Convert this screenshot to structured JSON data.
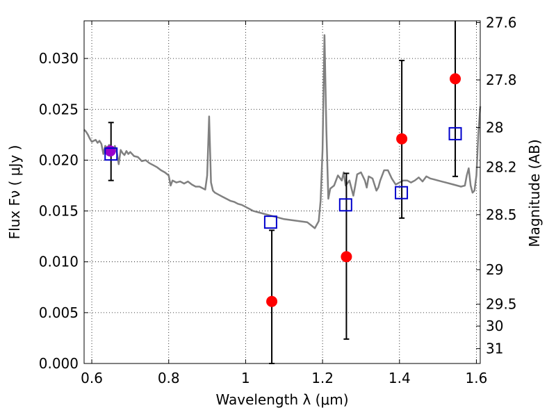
{
  "chart_data": {
    "type": "scatter",
    "xlabel": "Wavelength  λ (μm)",
    "ylabel": "Flux  Fν  ( μJy )",
    "ylabel_right": "Magnitude (AB)",
    "xlim": [
      0.58,
      1.61
    ],
    "ylim": [
      0.0,
      0.0337
    ],
    "grid": true,
    "x_ticks": [
      {
        "value": 0.6,
        "label": "0.6"
      },
      {
        "value": 0.8,
        "label": "0.8"
      },
      {
        "value": 1.0,
        "label": "1"
      },
      {
        "value": 1.2,
        "label": "1.2"
      },
      {
        "value": 1.4,
        "label": "1.4"
      },
      {
        "value": 1.6,
        "label": "1.6"
      }
    ],
    "y_ticks": [
      {
        "value": 0.0,
        "label": "0.000"
      },
      {
        "value": 0.005,
        "label": "0.005"
      },
      {
        "value": 0.01,
        "label": "0.010"
      },
      {
        "value": 0.015,
        "label": "0.015"
      },
      {
        "value": 0.02,
        "label": "0.020"
      },
      {
        "value": 0.025,
        "label": "0.025"
      },
      {
        "value": 0.03,
        "label": "0.030"
      }
    ],
    "right_ticks": [
      {
        "label": "27.6",
        "flux": 0.03353
      },
      {
        "label": "27.8",
        "flux": 0.02789
      },
      {
        "label": "28",
        "flux": 0.0232
      },
      {
        "label": "28.2",
        "flux": 0.0193
      },
      {
        "label": "28.5",
        "flux": 0.01464
      },
      {
        "label": "29",
        "flux": 0.00923
      },
      {
        "label": "29.5",
        "flux": 0.00583
      },
      {
        "label": "30",
        "flux": 0.00368
      },
      {
        "label": "31",
        "flux": 0.00146
      }
    ],
    "series": [
      {
        "kind": "line",
        "color": "#808080",
        "points": [
          [
            0.58,
            0.023
          ],
          [
            0.585,
            0.0228
          ],
          [
            0.59,
            0.0225
          ],
          [
            0.595,
            0.0221
          ],
          [
            0.6,
            0.0218
          ],
          [
            0.605,
            0.0219
          ],
          [
            0.61,
            0.022
          ],
          [
            0.615,
            0.0217
          ],
          [
            0.62,
            0.0219
          ],
          [
            0.625,
            0.0216
          ],
          [
            0.63,
            0.0206
          ],
          [
            0.635,
            0.0214
          ],
          [
            0.64,
            0.0212
          ],
          [
            0.645,
            0.0215
          ],
          [
            0.65,
            0.0213
          ],
          [
            0.655,
            0.021
          ],
          [
            0.66,
            0.0214
          ],
          [
            0.665,
            0.0208
          ],
          [
            0.67,
            0.0196
          ],
          [
            0.675,
            0.021
          ],
          [
            0.68,
            0.0207
          ],
          [
            0.685,
            0.0205
          ],
          [
            0.69,
            0.0209
          ],
          [
            0.695,
            0.0206
          ],
          [
            0.7,
            0.0208
          ],
          [
            0.71,
            0.0204
          ],
          [
            0.72,
            0.0203
          ],
          [
            0.73,
            0.0199
          ],
          [
            0.74,
            0.02
          ],
          [
            0.75,
            0.0197
          ],
          [
            0.76,
            0.0195
          ],
          [
            0.77,
            0.0193
          ],
          [
            0.78,
            0.019
          ],
          [
            0.79,
            0.0188
          ],
          [
            0.8,
            0.0185
          ],
          [
            0.805,
            0.0175
          ],
          [
            0.81,
            0.018
          ],
          [
            0.82,
            0.0178
          ],
          [
            0.83,
            0.0179
          ],
          [
            0.84,
            0.0177
          ],
          [
            0.85,
            0.0179
          ],
          [
            0.86,
            0.0176
          ],
          [
            0.87,
            0.0174
          ],
          [
            0.88,
            0.0174
          ],
          [
            0.89,
            0.0172
          ],
          [
            0.895,
            0.0171
          ],
          [
            0.9,
            0.0185
          ],
          [
            0.905,
            0.0243
          ],
          [
            0.91,
            0.0178
          ],
          [
            0.915,
            0.017
          ],
          [
            0.92,
            0.0168
          ],
          [
            0.93,
            0.0166
          ],
          [
            0.94,
            0.0164
          ],
          [
            0.95,
            0.0162
          ],
          [
            0.96,
            0.016
          ],
          [
            0.97,
            0.0159
          ],
          [
            0.98,
            0.0157
          ],
          [
            0.99,
            0.0156
          ],
          [
            1.0,
            0.0154
          ],
          [
            1.01,
            0.0152
          ],
          [
            1.02,
            0.015
          ],
          [
            1.03,
            0.0149
          ],
          [
            1.04,
            0.0148
          ],
          [
            1.05,
            0.0147
          ],
          [
            1.06,
            0.0146
          ],
          [
            1.07,
            0.0145
          ],
          [
            1.08,
            0.0144
          ],
          [
            1.09,
            0.0143
          ],
          [
            1.1,
            0.0142
          ],
          [
            1.12,
            0.0141
          ],
          [
            1.14,
            0.014
          ],
          [
            1.16,
            0.0139
          ],
          [
            1.17,
            0.0136
          ],
          [
            1.18,
            0.0133
          ],
          [
            1.19,
            0.014
          ],
          [
            1.195,
            0.016
          ],
          [
            1.2,
            0.021
          ],
          [
            1.205,
            0.0323
          ],
          [
            1.21,
            0.023
          ],
          [
            1.215,
            0.0162
          ],
          [
            1.22,
            0.0172
          ],
          [
            1.23,
            0.0175
          ],
          [
            1.24,
            0.0185
          ],
          [
            1.25,
            0.018
          ],
          [
            1.255,
            0.0188
          ],
          [
            1.26,
            0.0175
          ],
          [
            1.27,
            0.018
          ],
          [
            1.28,
            0.0165
          ],
          [
            1.285,
            0.0175
          ],
          [
            1.29,
            0.0186
          ],
          [
            1.3,
            0.0188
          ],
          [
            1.31,
            0.018
          ],
          [
            1.315,
            0.0173
          ],
          [
            1.32,
            0.0184
          ],
          [
            1.33,
            0.0182
          ],
          [
            1.34,
            0.017
          ],
          [
            1.345,
            0.0173
          ],
          [
            1.35,
            0.018
          ],
          [
            1.36,
            0.019
          ],
          [
            1.37,
            0.019
          ],
          [
            1.38,
            0.0182
          ],
          [
            1.39,
            0.0176
          ],
          [
            1.4,
            0.0178
          ],
          [
            1.41,
            0.018
          ],
          [
            1.42,
            0.018
          ],
          [
            1.43,
            0.0178
          ],
          [
            1.44,
            0.018
          ],
          [
            1.45,
            0.0183
          ],
          [
            1.46,
            0.0179
          ],
          [
            1.47,
            0.0184
          ],
          [
            1.48,
            0.0182
          ],
          [
            1.49,
            0.0181
          ],
          [
            1.5,
            0.018
          ],
          [
            1.52,
            0.0178
          ],
          [
            1.54,
            0.0176
          ],
          [
            1.56,
            0.0174
          ],
          [
            1.57,
            0.0175
          ],
          [
            1.575,
            0.0185
          ],
          [
            1.58,
            0.0192
          ],
          [
            1.585,
            0.0175
          ],
          [
            1.59,
            0.0168
          ],
          [
            1.595,
            0.017
          ],
          [
            1.6,
            0.0185
          ],
          [
            1.605,
            0.0225
          ],
          [
            1.61,
            0.0253
          ]
        ]
      },
      {
        "kind": "errorbar",
        "color": "#000000",
        "points": [
          {
            "x": 0.65,
            "low": 0.018,
            "high": 0.0237
          },
          {
            "x": 1.068,
            "low": 0.0,
            "high": 0.0131
          },
          {
            "x": 1.262,
            "low": 0.0024,
            "high": 0.0187
          },
          {
            "x": 1.406,
            "low": 0.0143,
            "high": 0.0298
          },
          {
            "x": 1.545,
            "low": 0.0184,
            "high": 0.034
          }
        ]
      },
      {
        "kind": "circle",
        "color": "#ff0000",
        "points": [
          [
            1.068,
            0.0061
          ],
          [
            1.262,
            0.0105
          ],
          [
            1.406,
            0.0221
          ],
          [
            1.545,
            0.028
          ]
        ]
      },
      {
        "kind": "circle",
        "color": "#9900cc",
        "points": [
          [
            0.648,
            0.0209
          ]
        ]
      },
      {
        "kind": "square",
        "color": "#0000cc",
        "points": [
          [
            0.65,
            0.0206
          ],
          [
            1.065,
            0.0139
          ],
          [
            1.26,
            0.0156
          ],
          [
            1.405,
            0.0168
          ],
          [
            1.545,
            0.0226
          ]
        ]
      }
    ]
  }
}
